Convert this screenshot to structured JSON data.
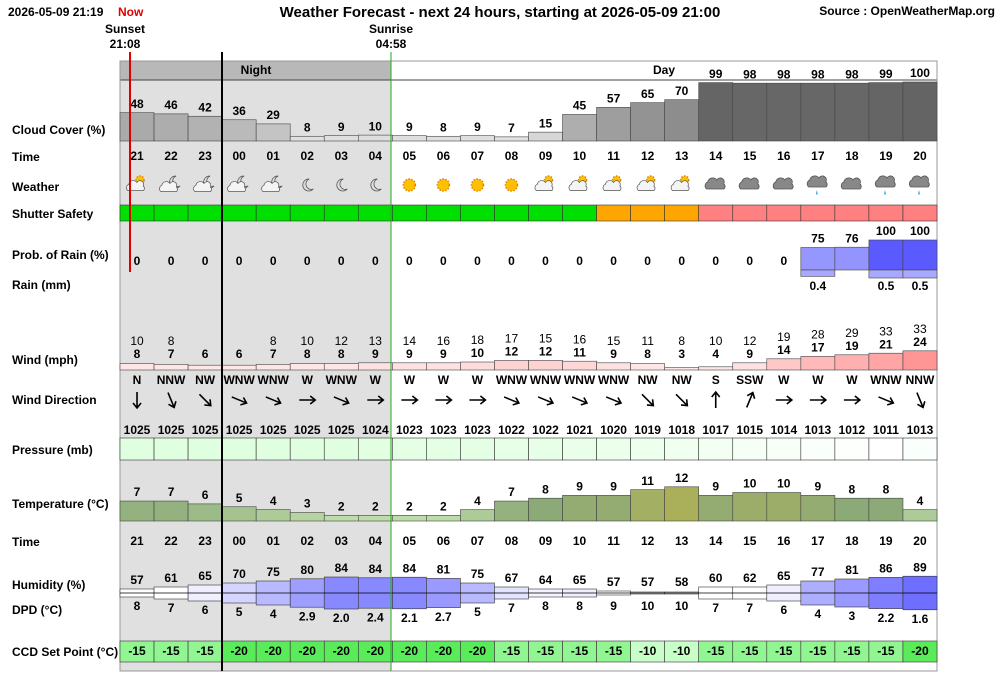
{
  "header": {
    "timestamp": "2026-05-09 21:19",
    "now": "Now",
    "title": "Weather Forecast - next 24 hours, starting at 2026-05-09 21:00",
    "source": "Source : OpenWeatherMap.org"
  },
  "sun": {
    "sunset_label": "Sunset",
    "sunset_time": "21:08",
    "sunrise_label": "Sunrise",
    "sunrise_time": "04:58"
  },
  "periods": {
    "night": "Night",
    "day": "Day"
  },
  "labels": {
    "cloud_cover": "Cloud Cover (%)",
    "time": "Time",
    "weather": "Weather",
    "shutter_safety": "Shutter Safety",
    "rain_probability": "Prob. of Rain (%)",
    "rain_mm": "Rain (mm)",
    "wind": "Wind (mph)",
    "wind_direction": "Wind Direction",
    "pressure": "Pressure (mb)",
    "temperature": "Temperature (°C)",
    "time_2": "Time",
    "humidity": "Humidity (%)",
    "dpd": "DPD (°C)",
    "ccd_set_point": "CCD Set Point (°C)"
  },
  "hours": [
    "21",
    "22",
    "23",
    "00",
    "01",
    "02",
    "03",
    "04",
    "05",
    "06",
    "07",
    "08",
    "09",
    "10",
    "11",
    "12",
    "13",
    "14",
    "15",
    "16",
    "17",
    "18",
    "19",
    "20"
  ],
  "cloud_cover": [
    48,
    46,
    42,
    36,
    29,
    8,
    9,
    10,
    9,
    8,
    9,
    7,
    15,
    45,
    57,
    65,
    70,
    99,
    98,
    98,
    98,
    98,
    99,
    100
  ],
  "shutter_colors": [
    "#00e000",
    "#00e000",
    "#00e000",
    "#00e000",
    "#00e000",
    "#00e000",
    "#00e000",
    "#00e000",
    "#00e000",
    "#00e000",
    "#00e000",
    "#00e000",
    "#00e000",
    "#00e000",
    "#ffa500",
    "#ffa500",
    "#ffa500",
    "#ff8080",
    "#ff8080",
    "#ff8080",
    "#ff8080",
    "#ff8080",
    "#ff8080",
    "#ff8080"
  ],
  "rain_probability": [
    0,
    0,
    0,
    0,
    0,
    0,
    0,
    0,
    0,
    0,
    0,
    0,
    0,
    0,
    0,
    0,
    0,
    0,
    0,
    0,
    75,
    76,
    100,
    100
  ],
  "rain_mm": [
    null,
    null,
    null,
    null,
    null,
    null,
    null,
    null,
    null,
    null,
    null,
    null,
    null,
    null,
    null,
    null,
    null,
    null,
    null,
    null,
    0.4,
    null,
    0.5,
    0.5
  ],
  "wind_gust": [
    10,
    8,
    null,
    null,
    8,
    10,
    12,
    13,
    14,
    16,
    18,
    17,
    15,
    16,
    15,
    11,
    8,
    10,
    12,
    19,
    28,
    29,
    33,
    33
  ],
  "wind_speed": [
    8,
    7,
    6,
    6,
    7,
    8,
    8,
    9,
    9,
    9,
    10,
    12,
    12,
    11,
    9,
    8,
    3,
    4,
    9,
    14,
    17,
    19,
    21,
    24
  ],
  "wind_direction": [
    "N",
    "NNW",
    "NW",
    "WNW",
    "WNW",
    "W",
    "WNW",
    "W",
    "W",
    "W",
    "W",
    "WNW",
    "WNW",
    "WNW",
    "WNW",
    "NW",
    "NW",
    "S",
    "SSW",
    "W",
    "W",
    "W",
    "WNW",
    "NNW"
  ],
  "pressure": [
    1025,
    1025,
    1025,
    1025,
    1025,
    1025,
    1025,
    1024,
    1023,
    1023,
    1023,
    1022,
    1022,
    1021,
    1020,
    1019,
    1018,
    1017,
    1015,
    1014,
    1013,
    1012,
    1011,
    1013
  ],
  "temperature": [
    7,
    7,
    6,
    5,
    4,
    3,
    2,
    2,
    2,
    2,
    4,
    7,
    8,
    9,
    9,
    11,
    12,
    9,
    10,
    10,
    9,
    8,
    8,
    4
  ],
  "humidity": [
    57,
    61,
    65,
    70,
    75,
    80,
    84,
    84,
    84,
    81,
    75,
    67,
    64,
    65,
    57,
    57,
    58,
    60,
    62,
    65,
    77,
    81,
    86,
    89
  ],
  "dpd": {
    "values": [
      8,
      7,
      6,
      5,
      4,
      2.9,
      2.0,
      2.4,
      2.1,
      2.7,
      5,
      7,
      8,
      8,
      9,
      10,
      10,
      7,
      7,
      6,
      4,
      3,
      2.2,
      1.6
    ],
    "value_labels": [
      "8",
      "7",
      "6",
      "5",
      "4",
      "2.9",
      "2.0",
      "2.4",
      "2.1",
      "2.7",
      "5",
      "7",
      "8",
      "8",
      "9",
      "10",
      "10",
      "7",
      "7",
      "6",
      "4",
      "3",
      "2.2",
      "1.6"
    ]
  },
  "ccd_set_point": [
    -15,
    -15,
    -15,
    -20,
    -20,
    -20,
    -20,
    -20,
    -20,
    -20,
    -20,
    -15,
    -15,
    -15,
    -15,
    -10,
    -10,
    -15,
    -15,
    -15,
    -15,
    -15,
    -15,
    -20
  ]
}
